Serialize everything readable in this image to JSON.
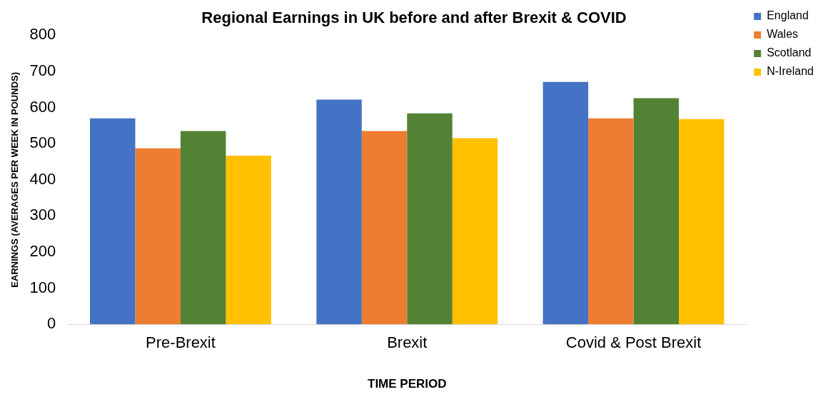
{
  "chart_data": {
    "type": "bar",
    "title": "Regional Earnings in UK before and after Brexit & COVID",
    "xlabel": "TIME PERIOD",
    "ylabel": "EARNINGS (AVERAGES PER WEEK IN POUNDS)",
    "categories": [
      "Pre-Brexit",
      "Brexit",
      "Covid & Post Brexit"
    ],
    "series": [
      {
        "name": "England",
        "color": "#4472c4",
        "values": [
          570,
          622,
          671
        ]
      },
      {
        "name": "Wales",
        "color": "#ed7d31",
        "values": [
          487,
          535,
          570
        ]
      },
      {
        "name": "Scotland",
        "color": "#548235",
        "values": [
          535,
          584,
          626
        ]
      },
      {
        "name": "N-Ireland",
        "color": "#ffc000",
        "values": [
          467,
          515,
          568
        ]
      }
    ],
    "ylim": [
      0,
      800
    ],
    "yticks": [
      0,
      100,
      200,
      300,
      400,
      500,
      600,
      700,
      800
    ],
    "grid": false,
    "legend": "top right"
  }
}
